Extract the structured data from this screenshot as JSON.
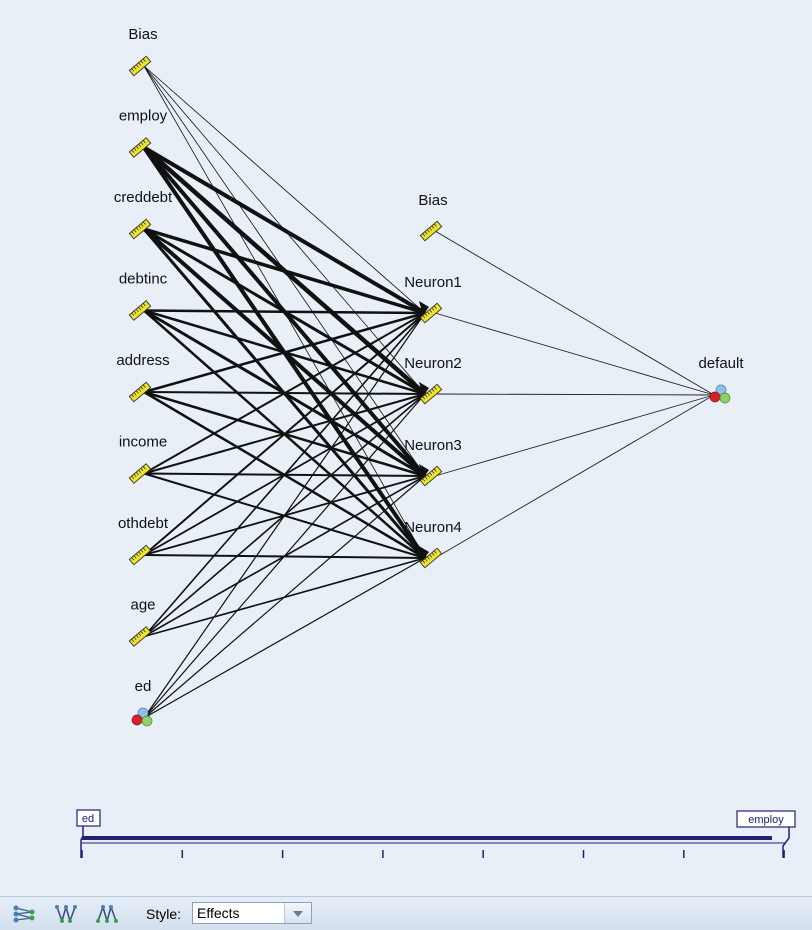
{
  "network": {
    "input_layer": [
      {
        "label": "Bias",
        "kind": "scale"
      },
      {
        "label": "employ",
        "kind": "scale"
      },
      {
        "label": "creddebt",
        "kind": "scale"
      },
      {
        "label": "debtinc",
        "kind": "scale"
      },
      {
        "label": "address",
        "kind": "scale"
      },
      {
        "label": "income",
        "kind": "scale"
      },
      {
        "label": "othdebt",
        "kind": "scale"
      },
      {
        "label": "age",
        "kind": "scale"
      },
      {
        "label": "ed",
        "kind": "nominal"
      }
    ],
    "hidden_layer": [
      {
        "label": "Bias"
      },
      {
        "label": "Neuron1"
      },
      {
        "label": "Neuron2"
      },
      {
        "label": "Neuron3"
      },
      {
        "label": "Neuron4"
      }
    ],
    "output_layer": [
      {
        "label": "default",
        "kind": "nominal"
      }
    ]
  },
  "slider": {
    "min_label": "ed",
    "max_label": "employ",
    "tick_count": 8
  },
  "toolbar": {
    "icons": [
      "network-diagram-icon",
      "weights-icon",
      "effects-icon"
    ],
    "style_label": "Style:",
    "style_value": "Effects"
  },
  "colors": {
    "background": "#e8eff7",
    "node_yellow": "#e8e020",
    "slider_bar": "#20207a"
  }
}
